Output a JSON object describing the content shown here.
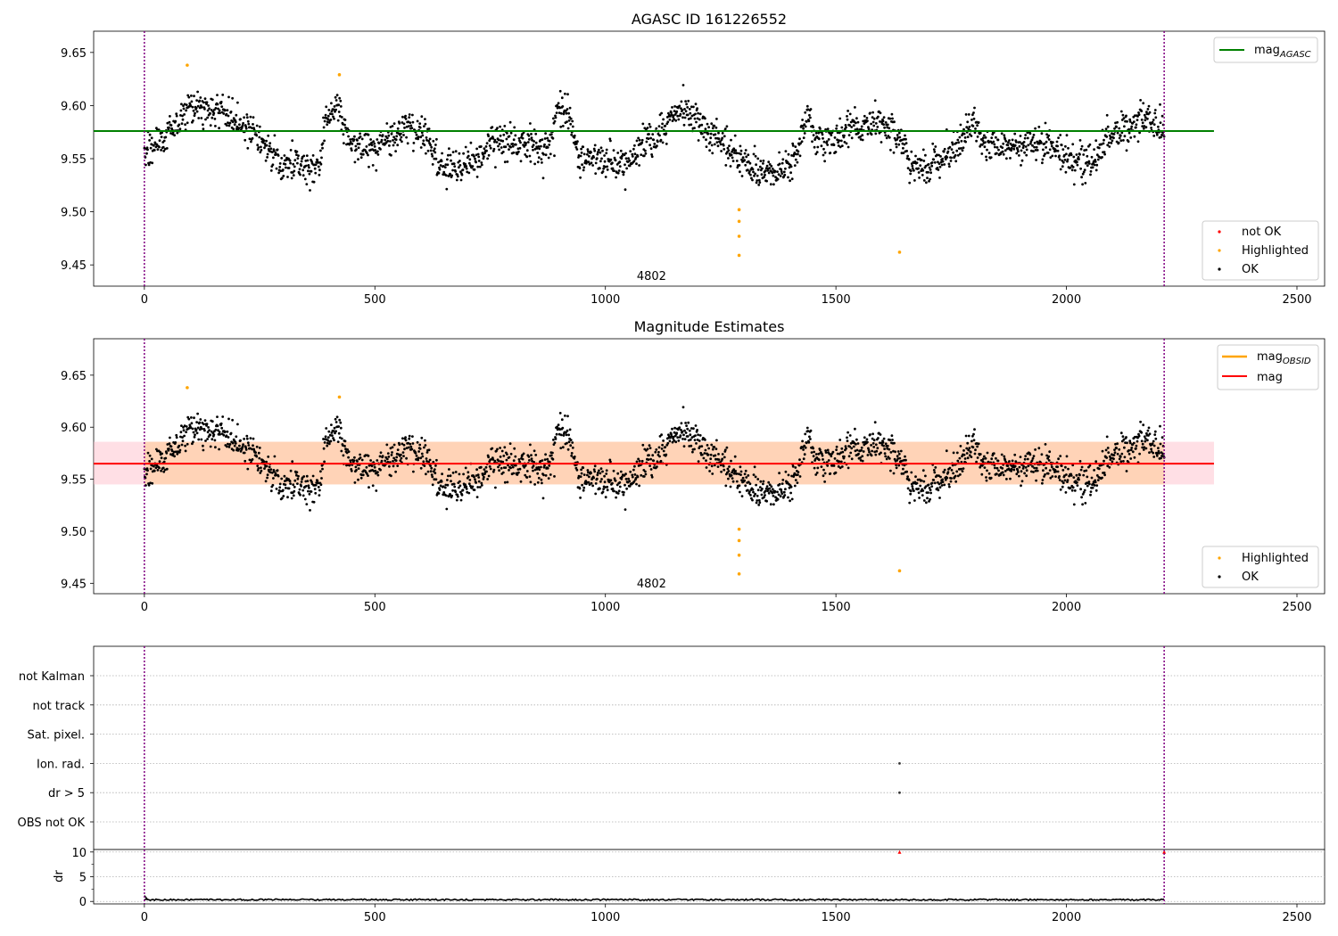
{
  "chart_data": [
    {
      "type": "scatter",
      "title": "AGASC ID 161226552",
      "xlabel": "",
      "ylabel": "",
      "xlim": [
        -110,
        2560
      ],
      "ylim": [
        9.43,
        9.67
      ],
      "x_ticks": [
        0,
        500,
        1000,
        1500,
        2000,
        2500
      ],
      "x_tick_labels": [
        "0",
        "500",
        "1000",
        "1500",
        "2000",
        "2500"
      ],
      "y_ticks": [
        9.45,
        9.5,
        9.55,
        9.6,
        9.65
      ],
      "y_tick_labels": [
        "9.45",
        "9.50",
        "9.55",
        "9.60",
        "9.65"
      ],
      "obsid_boundaries": [
        0,
        2212
      ],
      "obsid_label": {
        "x": 1100,
        "y": 9.436,
        "text": "4802"
      },
      "reference_lines": [
        {
          "name": "mag",
          "subscript": "AGASC",
          "y": 9.576,
          "x_range": [
            -110,
            2320
          ],
          "color": "#008000"
        }
      ],
      "legend_lines": [
        {
          "label": "mag",
          "subscript": "AGASC",
          "color": "#008000"
        }
      ],
      "legend_points": [
        {
          "label": "not OK",
          "color": "#ff0000"
        },
        {
          "label": "Highlighted",
          "color": "#ffa500"
        },
        {
          "label": "OK",
          "color": "#000000"
        }
      ],
      "series": [
        {
          "name": "OK",
          "color": "#000000",
          "source": "light-curve"
        },
        {
          "name": "Highlighted",
          "color": "#ffa500",
          "x": [
            93,
            423,
            1290,
            1290,
            1290,
            1290,
            1638
          ],
          "y": [
            9.638,
            9.629,
            9.502,
            9.491,
            9.477,
            9.459,
            9.462
          ]
        }
      ]
    },
    {
      "type": "scatter",
      "title": "Magnitude Estimates",
      "xlabel": "",
      "ylabel": "",
      "xlim": [
        -110,
        2560
      ],
      "ylim": [
        9.44,
        9.685
      ],
      "x_ticks": [
        0,
        500,
        1000,
        1500,
        2000,
        2500
      ],
      "x_tick_labels": [
        "0",
        "500",
        "1000",
        "1500",
        "2000",
        "2500"
      ],
      "y_ticks": [
        9.45,
        9.5,
        9.55,
        9.6,
        9.65
      ],
      "y_tick_labels": [
        "9.45",
        "9.50",
        "9.55",
        "9.60",
        "9.65"
      ],
      "obsid_boundaries": [
        0,
        2212
      ],
      "obsid_label": {
        "x": 1100,
        "y": 9.446,
        "text": "4802"
      },
      "reference_lines": [
        {
          "name": "mag",
          "subscript": "",
          "y": 9.565,
          "x_range": [
            -110,
            2320
          ],
          "color": "#ff0000"
        }
      ],
      "bands": [
        {
          "y_range": [
            9.545,
            9.586
          ],
          "x_range": [
            -110,
            2320
          ],
          "color": "#ffc0cb",
          "opacity": 0.5
        },
        {
          "y_range": [
            9.545,
            9.586
          ],
          "x_range": [
            0,
            2212
          ],
          "color": "#ffa500",
          "opacity": 0.2
        }
      ],
      "legend_lines": [
        {
          "label": "mag",
          "subscript": "OBSID",
          "color": "#ffa500"
        },
        {
          "label": "mag",
          "subscript": "",
          "color": "#ff0000"
        }
      ],
      "legend_points": [
        {
          "label": "Highlighted",
          "color": "#ffa500"
        },
        {
          "label": "OK",
          "color": "#000000"
        }
      ],
      "series": [
        {
          "name": "OK",
          "color": "#000000",
          "source": "light-curve"
        },
        {
          "name": "Highlighted",
          "color": "#ffa500",
          "x": [
            93,
            423,
            1290,
            1290,
            1290,
            1290,
            1638
          ],
          "y": [
            9.638,
            9.629,
            9.502,
            9.491,
            9.477,
            9.459,
            9.462
          ]
        }
      ]
    },
    {
      "type": "scatter",
      "title": "",
      "xlabel": "",
      "ylabel": "",
      "xlim": [
        -110,
        2560
      ],
      "obsid_boundaries": [
        0,
        2212
      ],
      "flag_labels": [
        "not Kalman",
        "not track",
        "Sat. pixel.",
        "Ion. rad.",
        "dr > 5",
        "OBS not OK"
      ],
      "flags": [
        {
          "flag": "Ion. rad.",
          "x": 1638
        },
        {
          "flag": "dr > 5",
          "x": 1638
        }
      ]
    },
    {
      "type": "line",
      "title": "",
      "xlabel": "",
      "ylabel": "dr",
      "xlim": [
        -110,
        2560
      ],
      "ylim": [
        -0.5,
        10.5
      ],
      "y_ticks": [
        0,
        5,
        10
      ],
      "y_tick_labels": [
        "0",
        "5",
        "10"
      ],
      "x_ticks": [
        0,
        500,
        1000,
        1500,
        2000,
        2500
      ],
      "x_tick_labels": [
        "0",
        "500",
        "1000",
        "1500",
        "2000",
        "2500"
      ],
      "obsid_boundaries": [
        0,
        2212
      ],
      "series": [
        {
          "name": "dr",
          "color": "#000000",
          "x": [
            0,
            2212
          ],
          "typical_y": [
            0.2,
            0.5
          ]
        },
        {
          "name": "dr clipped",
          "color": "#ff0000",
          "x": [
            1638,
            2212
          ],
          "y": [
            10,
            10
          ]
        }
      ]
    }
  ],
  "light_curve": {
    "x_range": [
      0,
      2212
    ],
    "n_points": 2200,
    "keypoints": [
      [
        0,
        9.555
      ],
      [
        40,
        9.565
      ],
      [
        60,
        9.58
      ],
      [
        90,
        9.595
      ],
      [
        120,
        9.6
      ],
      [
        150,
        9.595
      ],
      [
        200,
        9.585
      ],
      [
        240,
        9.575
      ],
      [
        270,
        9.56
      ],
      [
        300,
        9.545
      ],
      [
        350,
        9.54
      ],
      [
        380,
        9.548
      ],
      [
        395,
        9.59
      ],
      [
        420,
        9.6
      ],
      [
        440,
        9.565
      ],
      [
        500,
        9.56
      ],
      [
        540,
        9.572
      ],
      [
        580,
        9.578
      ],
      [
        610,
        9.57
      ],
      [
        640,
        9.545
      ],
      [
        680,
        9.537
      ],
      [
        720,
        9.55
      ],
      [
        760,
        9.57
      ],
      [
        800,
        9.565
      ],
      [
        860,
        9.56
      ],
      [
        880,
        9.565
      ],
      [
        900,
        9.6
      ],
      [
        920,
        9.595
      ],
      [
        940,
        9.55
      ],
      [
        980,
        9.55
      ],
      [
        1030,
        9.545
      ],
      [
        1060,
        9.55
      ],
      [
        1090,
        9.57
      ],
      [
        1110,
        9.565
      ],
      [
        1140,
        9.59
      ],
      [
        1180,
        9.595
      ],
      [
        1220,
        9.575
      ],
      [
        1250,
        9.57
      ],
      [
        1290,
        9.55
      ],
      [
        1320,
        9.54
      ],
      [
        1370,
        9.535
      ],
      [
        1410,
        9.55
      ],
      [
        1440,
        9.59
      ],
      [
        1460,
        9.57
      ],
      [
        1500,
        9.565
      ],
      [
        1540,
        9.58
      ],
      [
        1590,
        9.585
      ],
      [
        1640,
        9.57
      ],
      [
        1660,
        9.545
      ],
      [
        1700,
        9.54
      ],
      [
        1760,
        9.56
      ],
      [
        1800,
        9.585
      ],
      [
        1820,
        9.565
      ],
      [
        1880,
        9.56
      ],
      [
        1940,
        9.565
      ],
      [
        1980,
        9.555
      ],
      [
        2020,
        9.545
      ],
      [
        2060,
        9.545
      ],
      [
        2090,
        9.57
      ],
      [
        2140,
        9.58
      ],
      [
        2180,
        9.59
      ],
      [
        2212,
        9.575
      ]
    ],
    "scatter_std": 0.008
  }
}
